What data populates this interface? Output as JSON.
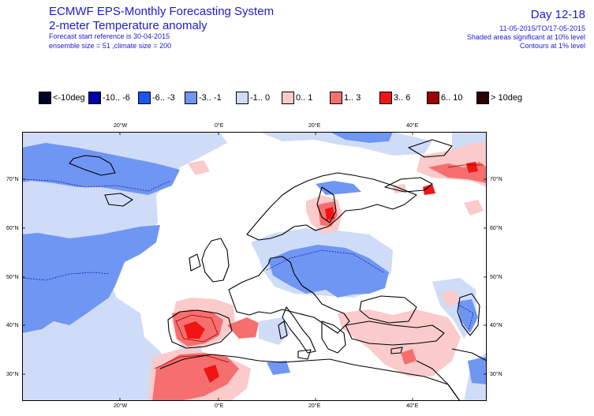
{
  "header": {
    "title": "ECMWF EPS-Monthly Forecasting System",
    "subtitle": "2-meter Temperature anomaly",
    "forecast_ref": "Forecast start reference is 30-04-2015",
    "ensemble": "ensemble size = 51  ,climate size = 200",
    "day_range": "Day 12-18",
    "date_range": "11-05-2015/TO/17-05-2015",
    "shaded_note": "Shaded areas significant at 10% level",
    "contour_note": "Contours at 1% level"
  },
  "legend": [
    {
      "label": "<-10deg",
      "color": "#000030"
    },
    {
      "label": "-10.. -6",
      "color": "#0000a8"
    },
    {
      "label": "-6.. -3",
      "color": "#1a55f0"
    },
    {
      "label": "-3.. -1",
      "color": "#6f96f2"
    },
    {
      "label": "-1..  0",
      "color": "#cfdcf8"
    },
    {
      "label": "0..  1",
      "color": "#fbcaca"
    },
    {
      "label": "1..  3",
      "color": "#f56f6f"
    },
    {
      "label": "3..  6",
      "color": "#f01515"
    },
    {
      "label": "6.. 10",
      "color": "#9c0000"
    },
    {
      "label": "> 10deg",
      "color": "#2e0000"
    }
  ],
  "map": {
    "lon_labels": [
      "20°W",
      "0°E",
      "20°E",
      "40°E"
    ],
    "lat_labels": [
      "70°N",
      "60°N",
      "50°N",
      "40°N",
      "30°N"
    ]
  }
}
